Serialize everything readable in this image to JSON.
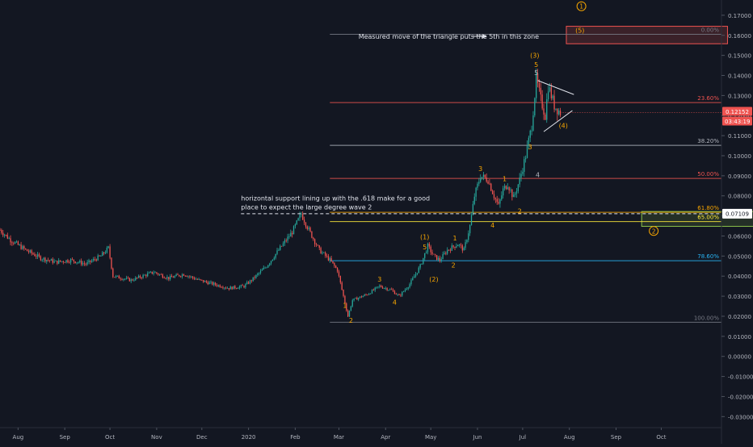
{
  "chart_data": {
    "type": "candlestick",
    "price_axis": {
      "ticks": [
        "0.17000",
        "0.16000",
        "0.15000",
        "0.14000",
        "0.13000",
        "0.12000",
        "0.11000",
        "0.10000",
        "0.09000",
        "0.08000",
        "0.07000",
        "0.06000",
        "0.05000",
        "0.04000",
        "0.03000",
        "0.02000",
        "0.01000",
        "0.00000",
        "-0.01000",
        "-0.02000",
        "-0.03000"
      ],
      "range": [
        -0.0355,
        0.1776
      ]
    },
    "time_axis": {
      "ticks": [
        {
          "label": "Aug",
          "day": 0
        },
        {
          "label": "Sep",
          "day": 31
        },
        {
          "label": "Oct",
          "day": 61
        },
        {
          "label": "Nov",
          "day": 92
        },
        {
          "label": "Dec",
          "day": 122
        },
        {
          "label": "2020",
          "day": 153
        },
        {
          "label": "Feb",
          "day": 184
        },
        {
          "label": "Mar",
          "day": 213
        },
        {
          "label": "Apr",
          "day": 244
        },
        {
          "label": "May",
          "day": 274
        },
        {
          "label": "Jun",
          "day": 305
        },
        {
          "label": "Jul",
          "day": 335
        },
        {
          "label": "Aug",
          "day": 366
        },
        {
          "label": "Sep",
          "day": 397
        },
        {
          "label": "Oct",
          "day": 427
        }
      ],
      "range": [
        -12,
        467
      ]
    },
    "price_path": [
      [
        -12,
        0.063
      ],
      [
        -5,
        0.058
      ],
      [
        5,
        0.053
      ],
      [
        15,
        0.049
      ],
      [
        25,
        0.047
      ],
      [
        35,
        0.048
      ],
      [
        45,
        0.046
      ],
      [
        55,
        0.05
      ],
      [
        60,
        0.054
      ],
      [
        63,
        0.04
      ],
      [
        75,
        0.038
      ],
      [
        90,
        0.042
      ],
      [
        100,
        0.039
      ],
      [
        110,
        0.041
      ],
      [
        120,
        0.038
      ],
      [
        130,
        0.036
      ],
      [
        140,
        0.034
      ],
      [
        150,
        0.035
      ],
      [
        155,
        0.038
      ],
      [
        165,
        0.045
      ],
      [
        175,
        0.055
      ],
      [
        182,
        0.062
      ],
      [
        188,
        0.071
      ],
      [
        193,
        0.063
      ],
      [
        200,
        0.053
      ],
      [
        207,
        0.048
      ],
      [
        212,
        0.043
      ],
      [
        216,
        0.03
      ],
      [
        219,
        0.02
      ],
      [
        222,
        0.028
      ],
      [
        232,
        0.031
      ],
      [
        240,
        0.035
      ],
      [
        248,
        0.033
      ],
      [
        253,
        0.03
      ],
      [
        260,
        0.036
      ],
      [
        267,
        0.045
      ],
      [
        272,
        0.055
      ],
      [
        276,
        0.05
      ],
      [
        280,
        0.048
      ],
      [
        285,
        0.053
      ],
      [
        292,
        0.056
      ],
      [
        296,
        0.053
      ],
      [
        300,
        0.065
      ],
      [
        303,
        0.08
      ],
      [
        307,
        0.09
      ],
      [
        312,
        0.088
      ],
      [
        316,
        0.08
      ],
      [
        319,
        0.075
      ],
      [
        322,
        0.083
      ],
      [
        325,
        0.086
      ],
      [
        329,
        0.079
      ],
      [
        333,
        0.088
      ],
      [
        337,
        0.1
      ],
      [
        341,
        0.115
      ],
      [
        344,
        0.138
      ],
      [
        347,
        0.128
      ],
      [
        350,
        0.12
      ],
      [
        352,
        0.135
      ],
      [
        356,
        0.125
      ],
      [
        360,
        0.1215
      ]
    ],
    "fib_levels": [
      {
        "label": "0.00%",
        "price": 0.1605,
        "color": "#787b86"
      },
      {
        "label": "23.60%",
        "price": 0.1265,
        "color": "#ef5350"
      },
      {
        "label": "38.20%",
        "price": 0.1052,
        "color": "#b2b5be"
      },
      {
        "label": "50.00%",
        "price": 0.0887,
        "color": "#ef5350"
      },
      {
        "label": "61.80%",
        "price": 0.0718,
        "color": "#f7a600"
      },
      {
        "label": "65.00%",
        "price": 0.0672,
        "color": "#ffeb3b"
      },
      {
        "label": "78.60%",
        "price": 0.0477,
        "color": "#29b6f6"
      },
      {
        "label": "100.00%",
        "price": 0.017,
        "color": "#787b86"
      }
    ],
    "current_price": {
      "value": "0.12152",
      "countdown": "03:43:19",
      "price": 0.1215
    },
    "support_price": {
      "value": "0.07109",
      "price": 0.0711
    },
    "wave_labels": [
      {
        "text": "1",
        "day": 217,
        "price": 0.0255,
        "color": "#f7a600"
      },
      {
        "text": "2",
        "day": 221,
        "price": 0.018,
        "color": "#f7a600"
      },
      {
        "text": "3",
        "day": 240,
        "price": 0.0385,
        "color": "#f7a600"
      },
      {
        "text": "4",
        "day": 250,
        "price": 0.027,
        "color": "#f7a600"
      },
      {
        "text": "(1)",
        "day": 270,
        "price": 0.0595,
        "color": "#f7a600"
      },
      {
        "text": "5",
        "day": 270,
        "price": 0.0545,
        "color": "#f7a600"
      },
      {
        "text": "(2)",
        "day": 276,
        "price": 0.0385,
        "color": "#f7a600"
      },
      {
        "text": "1",
        "day": 290,
        "price": 0.059,
        "color": "#f7a600"
      },
      {
        "text": "2",
        "day": 289,
        "price": 0.0455,
        "color": "#f7a600"
      },
      {
        "text": "3",
        "day": 307,
        "price": 0.0935,
        "color": "#f7a600"
      },
      {
        "text": "1",
        "day": 323,
        "price": 0.0885,
        "color": "#f7a600"
      },
      {
        "text": "4",
        "day": 315,
        "price": 0.0655,
        "color": "#f7a600"
      },
      {
        "text": "2",
        "day": 333,
        "price": 0.0725,
        "color": "#f7a600"
      },
      {
        "text": "3",
        "day": 340,
        "price": 0.1045,
        "color": "#f7a600"
      },
      {
        "text": "4",
        "day": 345,
        "price": 0.0905,
        "color": "#b2b5be"
      },
      {
        "text": "(3)",
        "day": 343,
        "price": 0.15,
        "color": "#f7a600"
      },
      {
        "text": "5",
        "day": 344,
        "price": 0.1455,
        "color": "#f7a600"
      },
      {
        "text": "5",
        "day": 344,
        "price": 0.1415,
        "color": "#b2b5be"
      },
      {
        "text": "(4)",
        "day": 362,
        "price": 0.115,
        "color": "#f7a600"
      },
      {
        "text": "(5)",
        "day": 373,
        "price": 0.1625,
        "color": "#f7a600"
      }
    ],
    "circled_labels": [
      {
        "text": "1",
        "day": 374,
        "price": 0.1745,
        "color": "#f7a600"
      },
      {
        "text": "2",
        "day": 422,
        "price": 0.0625,
        "color": "#f7a600"
      }
    ],
    "target_zone": {
      "from_day": 364,
      "to_day": 471,
      "high": 0.1645,
      "low": 0.1558,
      "color": "#ef5350"
    },
    "support_zone": {
      "from_day": 414,
      "to_day": 512,
      "high": 0.0722,
      "low": 0.0648,
      "color": "#8bc34a"
    },
    "triangle": {
      "apex_upper": [
        345,
        0.1375
      ],
      "upper_end": [
        369,
        0.1305
      ],
      "apex_lower": [
        349,
        0.112
      ],
      "lower_end": [
        368,
        0.1225
      ]
    },
    "annotations": [
      {
        "lines": [
          "Measured move of the triangle puts the 5th in this zone"
        ],
        "day": 226,
        "price": 0.1595,
        "anchor": "start"
      },
      {
        "lines": [
          "horizontal support lining up with the .618 make for a good",
          "place to expect the large degree wave 2"
        ],
        "day": 148,
        "price": 0.0788,
        "anchor": "start"
      }
    ]
  }
}
